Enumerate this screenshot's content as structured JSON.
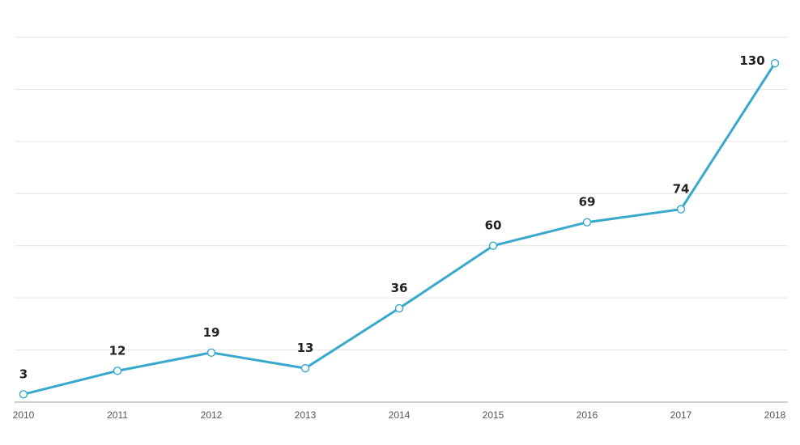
{
  "chart_data": {
    "type": "line",
    "categories": [
      "2010",
      "2011",
      "2012",
      "2013",
      "2014",
      "2015",
      "2016",
      "2017",
      "2018"
    ],
    "series": [
      {
        "values": [
          3,
          12,
          19,
          13,
          36,
          60,
          69,
          74,
          130
        ],
        "color": "#38a9cc"
      }
    ],
    "ylim": [
      0,
      140
    ],
    "grid": true,
    "grid_step": 20,
    "data_labels": [
      "3",
      "12",
      "19",
      "13",
      "36",
      "60",
      "69",
      "74",
      "130"
    ],
    "legend": "none"
  }
}
